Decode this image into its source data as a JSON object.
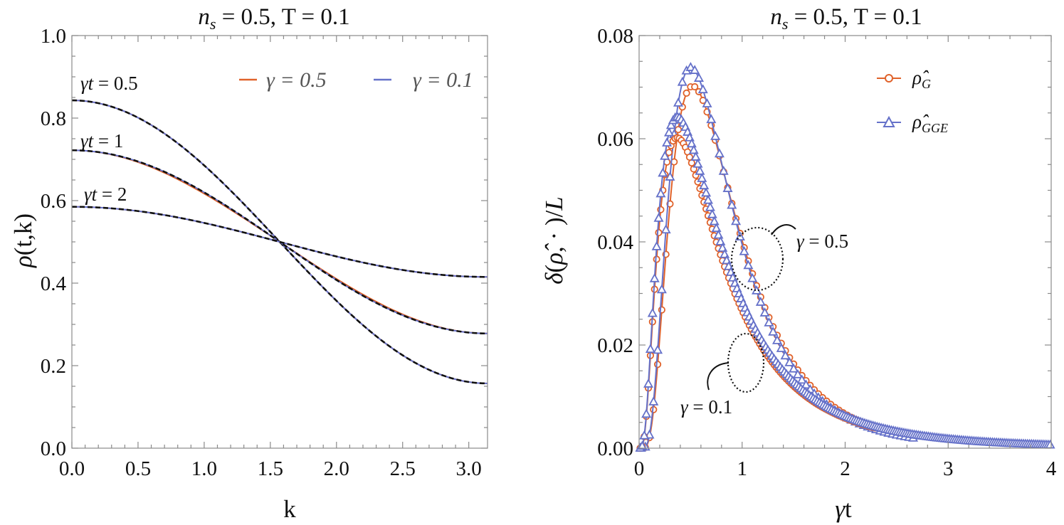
{
  "colors": {
    "orange": "#e0622a",
    "blue": "#6571c9",
    "black": "#111111",
    "axis": "#8a8a8a"
  },
  "chart_data": [
    {
      "type": "line",
      "title": "n_s = 0.5, T = 0.1",
      "xlabel": "k",
      "ylabel": "ρ(t,k)",
      "xlim": [
        0,
        3.1416
      ],
      "ylim": [
        0,
        1
      ],
      "xticks": [
        "0.0",
        "0.5",
        "1.0",
        "1.5",
        "2.0",
        "2.5",
        "3.0"
      ],
      "yticks": [
        "0.0",
        "0.2",
        "0.4",
        "0.6",
        "0.8",
        "1.0"
      ],
      "legend": {
        "position": "top-right",
        "entries": [
          {
            "label": "γ = 0.5",
            "color": "orange"
          },
          {
            "label": "γ = 0.1",
            "color": "blue"
          }
        ]
      },
      "reference_style": "black dashed",
      "curves": [
        {
          "label": "γt = 0.5",
          "rho_k0": 0.843,
          "rho_kpi": 0.157
        },
        {
          "label": "γt = 1",
          "rho_k0": 0.722,
          "rho_kpi": 0.278
        },
        {
          "label": "γt = 2",
          "rho_k0": 0.585,
          "rho_kpi": 0.415
        }
      ]
    },
    {
      "type": "scatter",
      "title": "n_s = 0.5, T = 0.1",
      "xlabel": "γt",
      "ylabel": "δ(ρ̂, · )/L",
      "xlim": [
        0,
        4
      ],
      "ylim": [
        0,
        0.08
      ],
      "xticks": [
        "0",
        "1",
        "2",
        "3",
        "4"
      ],
      "yticks": [
        "0.00",
        "0.02",
        "0.04",
        "0.06",
        "0.08"
      ],
      "legend": {
        "position": "top-right",
        "entries": [
          {
            "label": "ρ̂_G",
            "marker": "circle",
            "color": "orange"
          },
          {
            "label": "ρ̂_GGE",
            "marker": "triangle",
            "color": "blue"
          }
        ]
      },
      "series": [
        {
          "name": "ρ̂_G",
          "gamma": 0.5,
          "marker": "circle",
          "color": "orange",
          "peak_x": 0.52,
          "peak_y": 0.0702,
          "x_end": 2.4
        },
        {
          "name": "ρ̂_GGE",
          "gamma": 0.5,
          "marker": "triangle",
          "color": "blue",
          "peak_x": 0.5,
          "peak_y": 0.0738,
          "x_end": 2.7
        },
        {
          "name": "ρ̂_G",
          "gamma": 0.1,
          "marker": "circle",
          "color": "orange",
          "peak_x": 0.37,
          "peak_y": 0.0602,
          "x_end": 2.3
        },
        {
          "name": "ρ̂_GGE",
          "gamma": 0.1,
          "marker": "triangle",
          "color": "blue",
          "peak_x": 0.37,
          "peak_y": 0.0642,
          "x_end": 4.0
        }
      ],
      "annotations": [
        {
          "label": "γ = 0.5",
          "at_x": 1.12,
          "at_y": 0.038
        },
        {
          "label": "γ = 0.1",
          "at_x": 0.97,
          "at_y": 0.015
        }
      ]
    }
  ]
}
